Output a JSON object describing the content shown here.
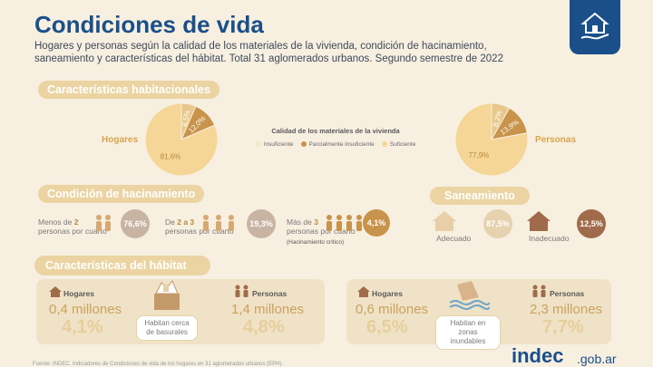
{
  "header": {
    "title": "Condiciones de vida",
    "subtitle": "Hogares y personas según la calidad de los materiales de la vivienda, condición de hacinamiento, saneamiento y características del hábitat. Total 31 aglomerados urbanos. Segundo semestre de 2022"
  },
  "section_habitacionales": {
    "title": "Características habitacionales",
    "hogares_label": "Hogares",
    "personas_label": "Personas",
    "hogares_pie": [
      {
        "label": "6,5%",
        "value": 6.5,
        "color": "#e8c88a"
      },
      {
        "label": "12,0%",
        "value": 12.0,
        "color": "#c8934a"
      },
      {
        "label": "81,6%",
        "value": 81.6,
        "color": "#f5d696"
      }
    ],
    "personas_pie": [
      {
        "label": "8,2%",
        "value": 8.2,
        "color": "#e8c88a"
      },
      {
        "label": "13,9%",
        "value": 13.9,
        "color": "#c8934a"
      },
      {
        "label": "77,9%",
        "value": 77.9,
        "color": "#f5d696"
      }
    ],
    "legend": {
      "title": "Calidad de los materiales de la vivienda",
      "items": [
        {
          "label": "Insuficiente",
          "color": "#f4e7cc"
        },
        {
          "label": "Parcialmente insuficiente",
          "color": "#c8934a"
        },
        {
          "label": "Suficiente",
          "color": "#f5d696"
        }
      ]
    }
  },
  "section_hacinamiento": {
    "title": "Condición de hacinamiento",
    "items": [
      {
        "line1_pre": "Menos de ",
        "line1_num": "2",
        "line2": "personas por cuarto",
        "pct": "76,6%",
        "color": "#c9b4a4"
      },
      {
        "line1_pre": "De ",
        "line1_num": "2 a 3",
        "line2": "personas por cuarto",
        "pct": "19,3%",
        "color": "#c9b4a4"
      },
      {
        "line1_pre": "Más de ",
        "line1_num": "3",
        "line2": "personas por cuarto",
        "note": "(Hacinamiento crítico)",
        "pct": "4,1%",
        "color": "#c8934a"
      }
    ]
  },
  "section_saneamiento": {
    "title": "Saneamiento",
    "items": [
      {
        "label": "Adecuado",
        "pct": "87,5%"
      },
      {
        "label": "Inadecuado",
        "pct": "12,5%"
      }
    ]
  },
  "section_habitat": {
    "title": "Características del hábitat",
    "basurales": {
      "label": "Habitan cerca de basurales",
      "hogares_title": "Hogares",
      "hogares_num": "0,4 millones",
      "hogares_pct": "4,1%",
      "personas_title": "Personas",
      "personas_num": "1,4 millones",
      "personas_pct": "4,8%"
    },
    "inundables": {
      "label": "Habitan en zonas inundables",
      "hogares_title": "Hogares",
      "hogares_num": "0,6 millones",
      "hogares_pct": "6,5%",
      "personas_title": "Personas",
      "personas_num": "2,3 millones",
      "personas_pct": "7,7%"
    }
  },
  "footer": {
    "source": "Fuente: INDEC. Indicadores de Condiciones de vida de los hogares en 31 aglomerados urbanos (EPH).",
    "brand": "indec",
    "brand_suffix": ".gob.ar"
  }
}
